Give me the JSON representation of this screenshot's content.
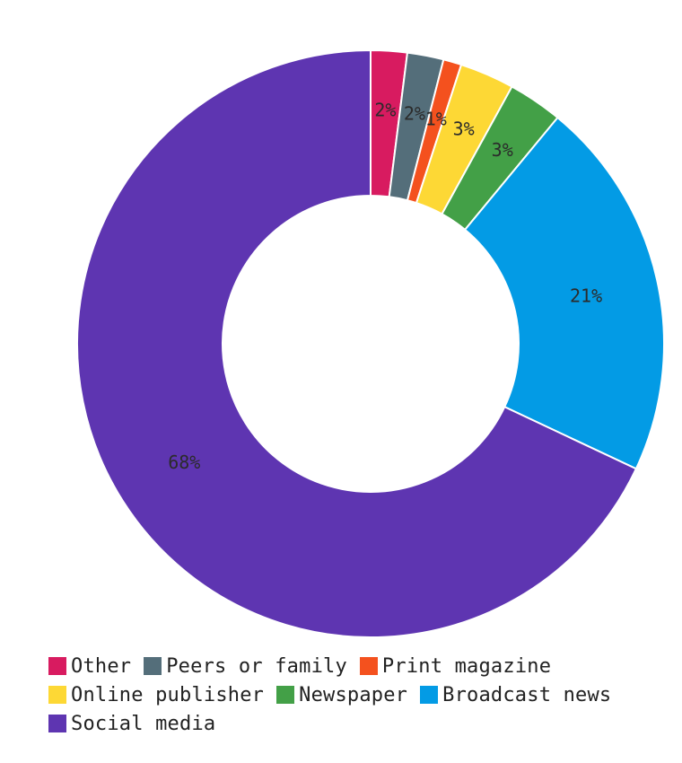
{
  "chart_data": {
    "type": "pie",
    "donut": true,
    "slices": [
      {
        "label": "Other",
        "value": 2,
        "display": "2%",
        "color": "#d81b60"
      },
      {
        "label": "Peers or family",
        "value": 2,
        "display": "2%",
        "color": "#546e7a"
      },
      {
        "label": "Print magazine",
        "value": 1,
        "display": "1%",
        "color": "#f4511e"
      },
      {
        "label": "Online publisher",
        "value": 3,
        "display": "3%",
        "color": "#fdd835"
      },
      {
        "label": "Newspaper",
        "value": 3,
        "display": "3%",
        "color": "#43a047"
      },
      {
        "label": "Broadcast news",
        "value": 21,
        "display": "21%",
        "color": "#039be5"
      },
      {
        "label": "Social media",
        "value": 68,
        "display": "68%",
        "color": "#5e35b1"
      }
    ],
    "legend_position": "bottom"
  }
}
